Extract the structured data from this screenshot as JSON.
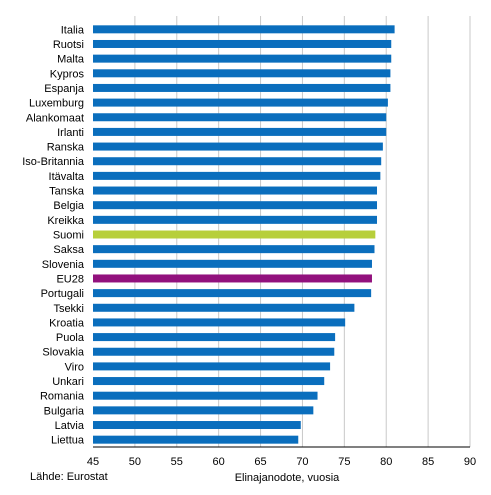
{
  "chart_data": {
    "type": "bar",
    "orientation": "horizontal",
    "categories": [
      "Italia",
      "Ruotsi",
      "Malta",
      "Kypros",
      "Espanja",
      "Luxemburg",
      "Alankomaat",
      "Irlanti",
      "Ranska",
      "Iso-Britannia",
      "Itävalta",
      "Tanska",
      "Belgia",
      "Kreikka",
      "Suomi",
      "Saksa",
      "Slovenia",
      "EU28",
      "Portugali",
      "Tsekki",
      "Kroatia",
      "Puola",
      "Slovakia",
      "Viro",
      "Unkari",
      "Romania",
      "Bulgaria",
      "Latvia",
      "Liettua"
    ],
    "values": [
      81.0,
      80.6,
      80.6,
      80.5,
      80.5,
      80.2,
      80.0,
      80.0,
      79.6,
      79.4,
      79.3,
      78.9,
      78.9,
      78.9,
      78.7,
      78.6,
      78.3,
      78.3,
      78.2,
      76.2,
      75.1,
      73.9,
      73.8,
      73.3,
      72.6,
      71.8,
      71.3,
      69.8,
      69.5
    ],
    "colors": {
      "default": "#0a6ebd",
      "Suomi": "#b7cf3a",
      "EU28": "#92117d"
    },
    "xlim": [
      45,
      90
    ],
    "xticks": [
      45,
      50,
      55,
      60,
      65,
      70,
      75,
      80,
      85,
      90
    ],
    "xlabel": "Elinajanodote, vuosia",
    "grid": "vertical"
  },
  "source": "Lähde: Eurostat"
}
